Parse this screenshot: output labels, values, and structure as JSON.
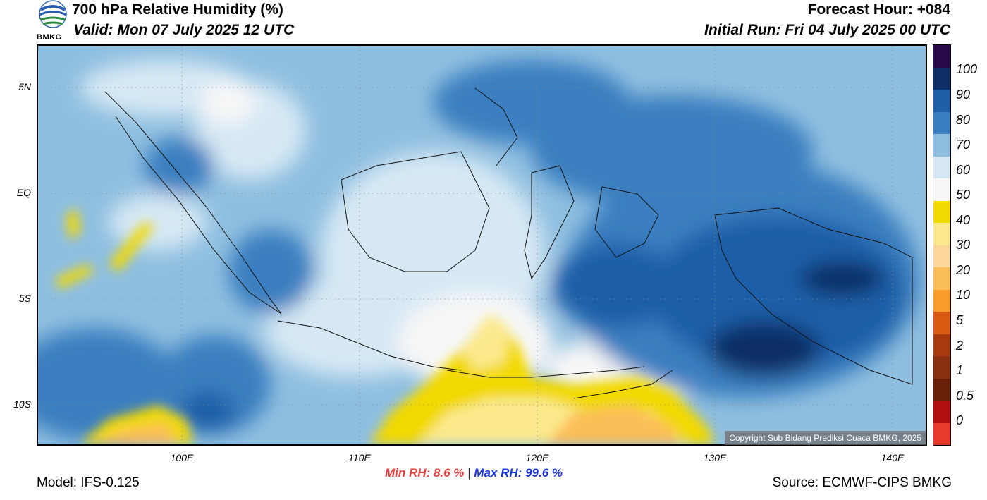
{
  "header": {
    "title": "700 hPa Relative Humidity (%)",
    "valid": "Valid: Mon 07 July 2025 12 UTC",
    "forecast_hour": "Forecast Hour: +084",
    "initial_run": "Initial Run: Fri 04 July 2025 00 UTC",
    "logo_text": "BMKG"
  },
  "axes": {
    "lat_labels": [
      "5N",
      "EQ",
      "5S",
      "10S"
    ],
    "lon_labels": [
      "100E",
      "110E",
      "120E",
      "130E",
      "140E"
    ]
  },
  "colorbar": {
    "labels": [
      "100",
      "90",
      "80",
      "70",
      "60",
      "50",
      "40",
      "30",
      "20",
      "10",
      "5",
      "2",
      "1",
      "0.5",
      "0"
    ],
    "colors": [
      "#2a0a4a",
      "#0f2f66",
      "#1f5ea8",
      "#3a7fc0",
      "#8fbfe0",
      "#d6e8f4",
      "#f7f7f7",
      "#f2d900",
      "#fbe98c",
      "#fdd89a",
      "#fcbe58",
      "#f99a2b",
      "#d85a10",
      "#a83a10",
      "#8a2f10",
      "#6a2008",
      "#b01010",
      "#e83a2a"
    ]
  },
  "footer": {
    "min_rh_label": "Min RH:",
    "min_rh_value": "8.6 %",
    "separator": "|",
    "max_rh_label": "Max RH:",
    "max_rh_value": "99.6 %",
    "model": "Model: IFS-0.125",
    "source": "Source: ECMWF-CIPS BMKG",
    "copyright": "Copyright Sub Bidang Prediksi Cuaca BMKG, 2025"
  }
}
